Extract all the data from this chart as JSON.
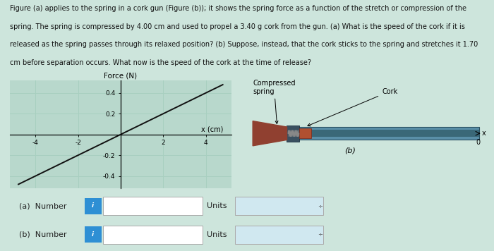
{
  "text_block_lines": [
    "Figure (a) applies to the spring in a cork gun (Figure (b)); it shows the spring force as a function of the stretch or compression of the",
    "spring. The spring is compressed by 4.00 cm and used to propel a 3.40 g cork from the gun. (a) What is the speed of the cork if it is",
    "released as the spring passes through its relaxed position? (b) Suppose, instead, that the cork sticks to the spring and stretches it 1.70",
    "cm before separation occurs. What now is the speed of the cork at the time of release?"
  ],
  "graph_title": "Force (N)",
  "graph_xlabel": "x (cm)",
  "x_ticks": [
    -4,
    -2,
    2,
    4
  ],
  "y_ticks": [
    -0.4,
    -0.2,
    0.2,
    0.4
  ],
  "xlim": [
    -5.2,
    5.2
  ],
  "ylim": [
    -0.52,
    0.52
  ],
  "line_x": [
    -4.8,
    4.8
  ],
  "line_y": [
    -0.48,
    0.48
  ],
  "grid_color": "#a8cfc0",
  "line_color": "#111111",
  "label_a": "(a)",
  "label_b": "(b)",
  "compressed_spring_label": "Compressed\nspring",
  "cork_label": "Cork",
  "zero_label": "0",
  "bg_color": "#cde5dc",
  "graph_bg": "#b8d8cc",
  "row_a_label": "(a)  Number",
  "row_b_label": "(b)  Number",
  "units_label": "Units",
  "btn_color": "#2e8fd4",
  "input_bg": "#ffffff",
  "input_border": "#aaaaaa",
  "units_bg": "#d0e8f0",
  "units_border": "#aaaaaa",
  "text_fontsize": 7.0,
  "tick_fontsize": 6.5,
  "title_fontsize": 7.5,
  "label_fontsize": 8.0,
  "row_fontsize": 8.0
}
